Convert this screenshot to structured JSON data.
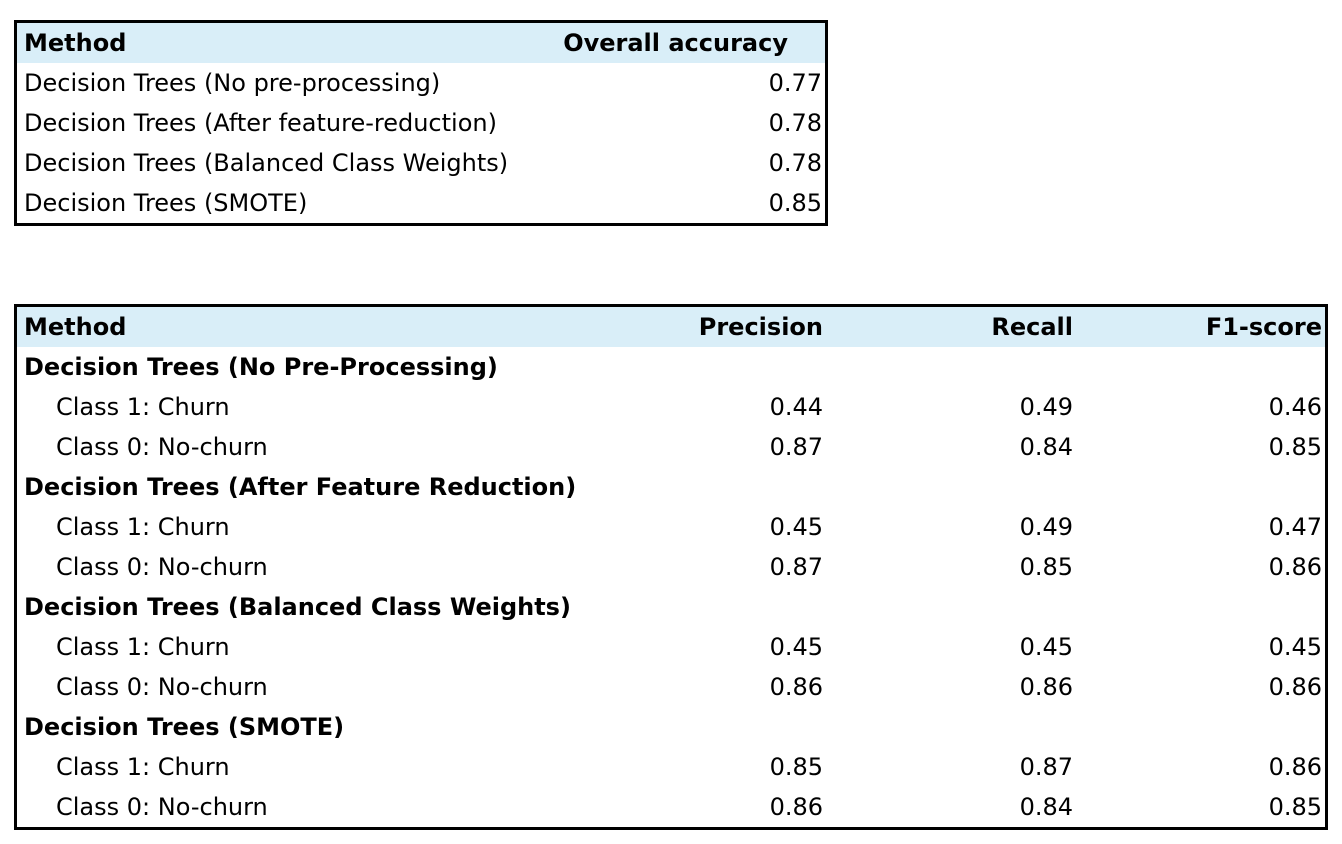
{
  "accuracy_table": {
    "headers": {
      "method": "Method",
      "accuracy": "Overall accuracy"
    },
    "rows": [
      {
        "method": "Decision Trees (No pre-processing)",
        "accuracy": "0.77"
      },
      {
        "method": "Decision Trees (After feature-reduction)",
        "accuracy": "0.78"
      },
      {
        "method": "Decision Trees (Balanced Class Weights)",
        "accuracy": "0.78"
      },
      {
        "method": "Decision Trees (SMOTE)",
        "accuracy": "0.85"
      }
    ]
  },
  "metrics_table": {
    "headers": {
      "method": "Method",
      "precision": "Precision",
      "recall": "Recall",
      "f1": "F1-score"
    },
    "groups": [
      {
        "title": "Decision Trees (No Pre-Processing)",
        "rows": [
          {
            "label": "Class 1: Churn",
            "precision": "0.44",
            "recall": "0.49",
            "f1": "0.46"
          },
          {
            "label": "Class 0: No-churn",
            "precision": "0.87",
            "recall": "0.84",
            "f1": "0.85"
          }
        ]
      },
      {
        "title": "Decision Trees (After Feature Reduction)",
        "rows": [
          {
            "label": "Class 1: Churn",
            "precision": "0.45",
            "recall": "0.49",
            "f1": "0.47"
          },
          {
            "label": "Class 0: No-churn",
            "precision": "0.87",
            "recall": "0.85",
            "f1": "0.86"
          }
        ]
      },
      {
        "title": "Decision Trees (Balanced Class Weights)",
        "rows": [
          {
            "label": "Class 1: Churn",
            "precision": "0.45",
            "recall": "0.45",
            "f1": "0.45"
          },
          {
            "label": "Class 0: No-churn",
            "precision": "0.86",
            "recall": "0.86",
            "f1": "0.86"
          }
        ]
      },
      {
        "title": "Decision Trees (SMOTE)",
        "rows": [
          {
            "label": "Class 1: Churn",
            "precision": "0.85",
            "recall": "0.87",
            "f1": "0.86"
          },
          {
            "label": "Class 0: No-churn",
            "precision": "0.86",
            "recall": "0.84",
            "f1": "0.85"
          }
        ]
      }
    ]
  }
}
